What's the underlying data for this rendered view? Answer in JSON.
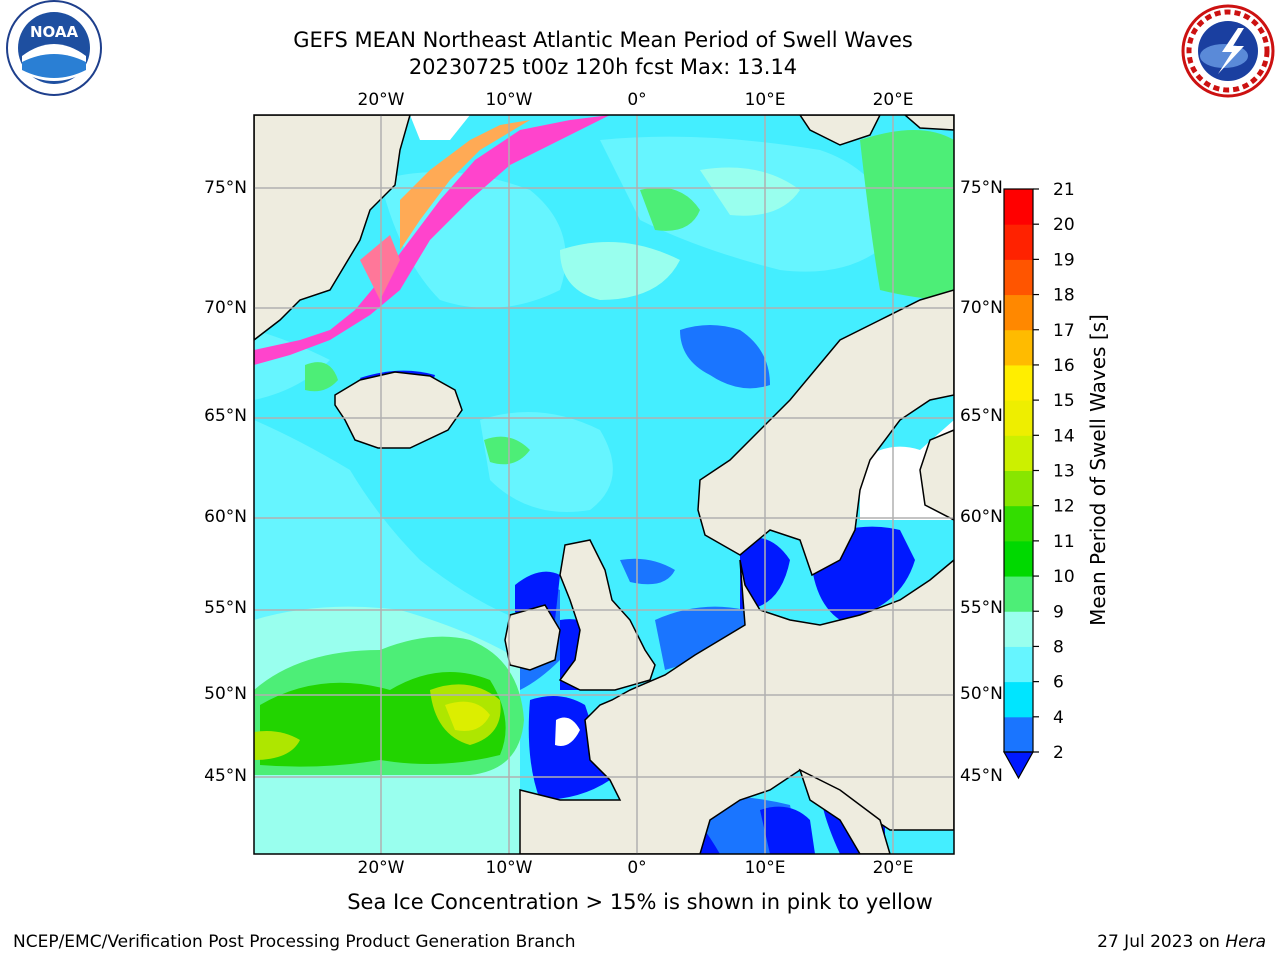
{
  "title": {
    "line1": "GEFS MEAN Northeast Atlantic Mean Period of Swell Waves",
    "line2": "20230725 t00z 120h fcst   Max: 13.14"
  },
  "logos": {
    "noaa_text": "NOAA",
    "noaa_ring": "NATIONAL OCEANIC AND ATMOSPHERIC ADMINISTRATION · U.S. DEPARTMENT OF COMMERCE",
    "nws_ring": "NATIONAL WEATHER SERVICE"
  },
  "map": {
    "lon_labels": [
      "20°W",
      "10°W",
      "0°",
      "10°E",
      "20°E"
    ],
    "lat_labels": [
      "75°N",
      "70°N",
      "65°N",
      "60°N",
      "55°N",
      "50°N",
      "45°N"
    ]
  },
  "colorbar": {
    "title": "Mean Period of Swell Waves [s]",
    "ticks": [
      "2",
      "4",
      "6",
      "8",
      "9",
      "10",
      "11",
      "12",
      "13",
      "14",
      "15",
      "16",
      "17",
      "18",
      "19",
      "20",
      "21"
    ],
    "colors": [
      "#0019ff",
      "#1a75ff",
      "#00e5ff",
      "#66f5ff",
      "#99ffee",
      "#4dee77",
      "#00d900",
      "#33dd00",
      "#88e600",
      "#ccf000",
      "#eeee00",
      "#ffee00",
      "#ffbb00",
      "#ff8800",
      "#ff5500",
      "#ff2200",
      "#ff0000"
    ]
  },
  "colors": {
    "land": "#eeecdf",
    "ocean_base": "#44eeff",
    "grid": "#b0b0b0",
    "ice_pink": "#ff44cc",
    "ice_orange": "#ffaa55"
  },
  "footer": {
    "note": "Sea Ice Concentration > 15% is shown in pink to yellow",
    "credit": "NCEP/EMC/Verification Post Processing Product Generation Branch",
    "date": "27 Jul 2023 on",
    "host": "Hera"
  }
}
